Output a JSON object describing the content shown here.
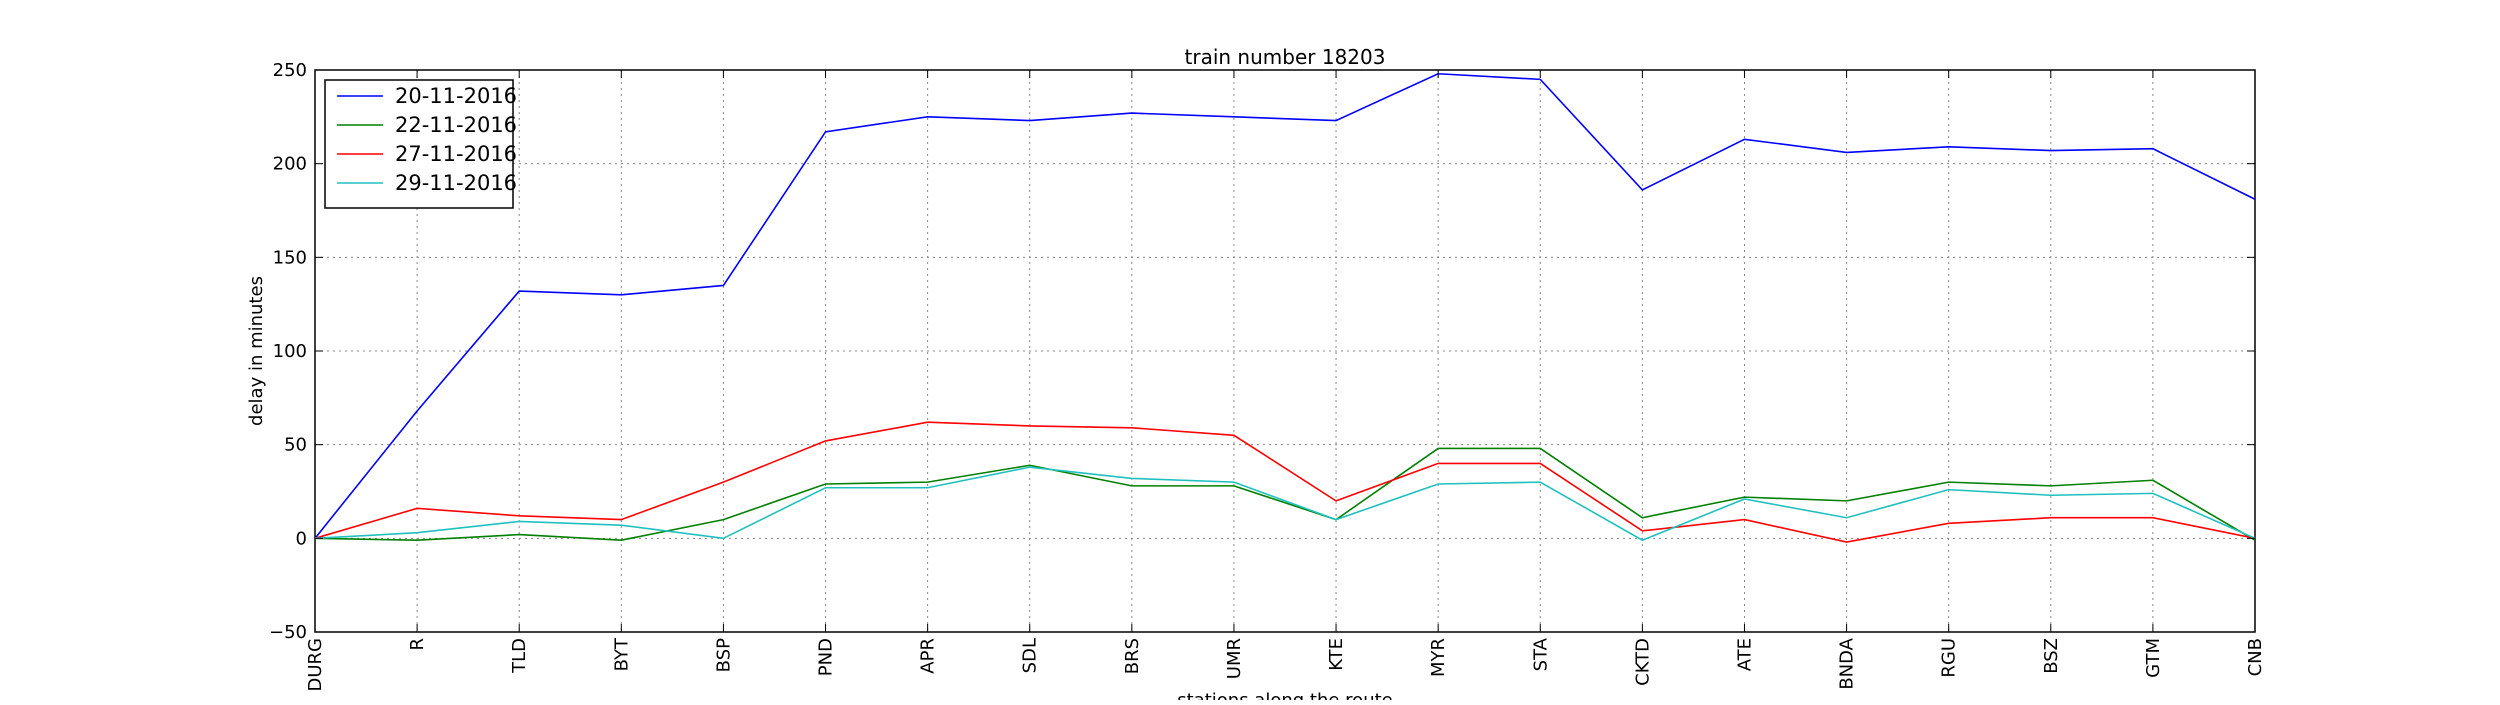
{
  "chart_data": {
    "type": "line",
    "title": "train number 18203",
    "xlabel": "stations along the route",
    "ylabel": "delay in minutes",
    "categories": [
      "DURG",
      "R",
      "TLD",
      "BYT",
      "BSP",
      "PND",
      "APR",
      "SDL",
      "BRS",
      "UMR",
      "KTE",
      "MYR",
      "STA",
      "CKTD",
      "ATE",
      "BNDA",
      "RGU",
      "BSZ",
      "GTM",
      "CNB"
    ],
    "ylim": [
      -50,
      250
    ],
    "yticks": [
      -50,
      0,
      50,
      100,
      150,
      200,
      250
    ],
    "grid": true,
    "legend_position": "top-left",
    "series": [
      {
        "name": "20-11-2016",
        "color": "#0000ff",
        "values": [
          0,
          68,
          132,
          130,
          135,
          217,
          225,
          223,
          227,
          225,
          223,
          248,
          245,
          186,
          213,
          206,
          209,
          207,
          208,
          181
        ]
      },
      {
        "name": "22-11-2016",
        "color": "#008000",
        "values": [
          0,
          -1,
          2,
          -1,
          10,
          29,
          30,
          39,
          28,
          28,
          10,
          48,
          48,
          11,
          22,
          20,
          30,
          28,
          31,
          -1
        ]
      },
      {
        "name": "27-11-2016",
        "color": "#ff0000",
        "values": [
          0,
          16,
          12,
          10,
          30,
          52,
          62,
          60,
          59,
          55,
          20,
          40,
          40,
          4,
          10,
          -2,
          8,
          11,
          11,
          0
        ]
      },
      {
        "name": "29-11-2016",
        "color": "#20c0c0",
        "values": [
          0,
          3,
          9,
          7,
          0,
          27,
          27,
          38,
          32,
          30,
          10,
          29,
          30,
          -1,
          21,
          11,
          26,
          23,
          24,
          0
        ]
      }
    ]
  }
}
